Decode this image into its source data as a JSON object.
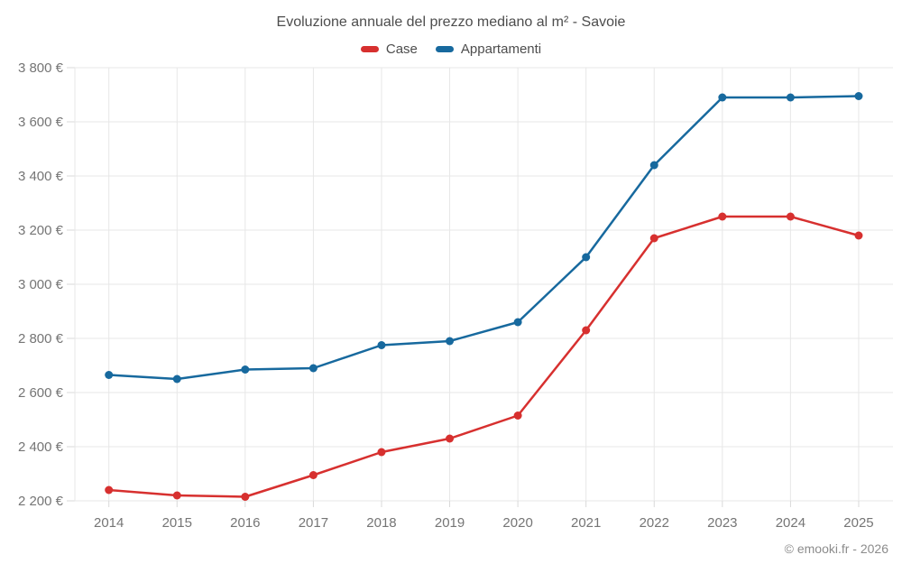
{
  "chart_data": {
    "type": "line",
    "title": "Evoluzione annuale del prezzo mediano al m² - Savoie",
    "xlabel": "",
    "ylabel": "",
    "categories": [
      "2014",
      "2015",
      "2016",
      "2017",
      "2018",
      "2019",
      "2020",
      "2021",
      "2022",
      "2023",
      "2024",
      "2025"
    ],
    "series": [
      {
        "name": "Case",
        "color": "#d7302f",
        "values": [
          2240,
          2220,
          2215,
          2295,
          2380,
          2430,
          2515,
          2830,
          3170,
          3250,
          3250,
          3180
        ]
      },
      {
        "name": "Appartamenti",
        "color": "#17699e",
        "values": [
          2665,
          2650,
          2685,
          2690,
          2775,
          2790,
          2860,
          3100,
          3440,
          3690,
          3690,
          3695
        ]
      }
    ],
    "ylim": [
      2200,
      3800
    ],
    "ytick_step": 200,
    "ytick_labels": [
      "2 200 €",
      "2 400 €",
      "2 600 €",
      "2 800 €",
      "3 000 €",
      "3 200 €",
      "3 400 €",
      "3 600 €",
      "3 800 €"
    ],
    "grid": true,
    "grid_color": "#e7e7e7",
    "tick_color": "#d9d9d9",
    "axis_text_color": "#757575",
    "legend_position": "top",
    "currency": "€"
  },
  "footer": {
    "credit": "© emooki.fr - 2026"
  }
}
